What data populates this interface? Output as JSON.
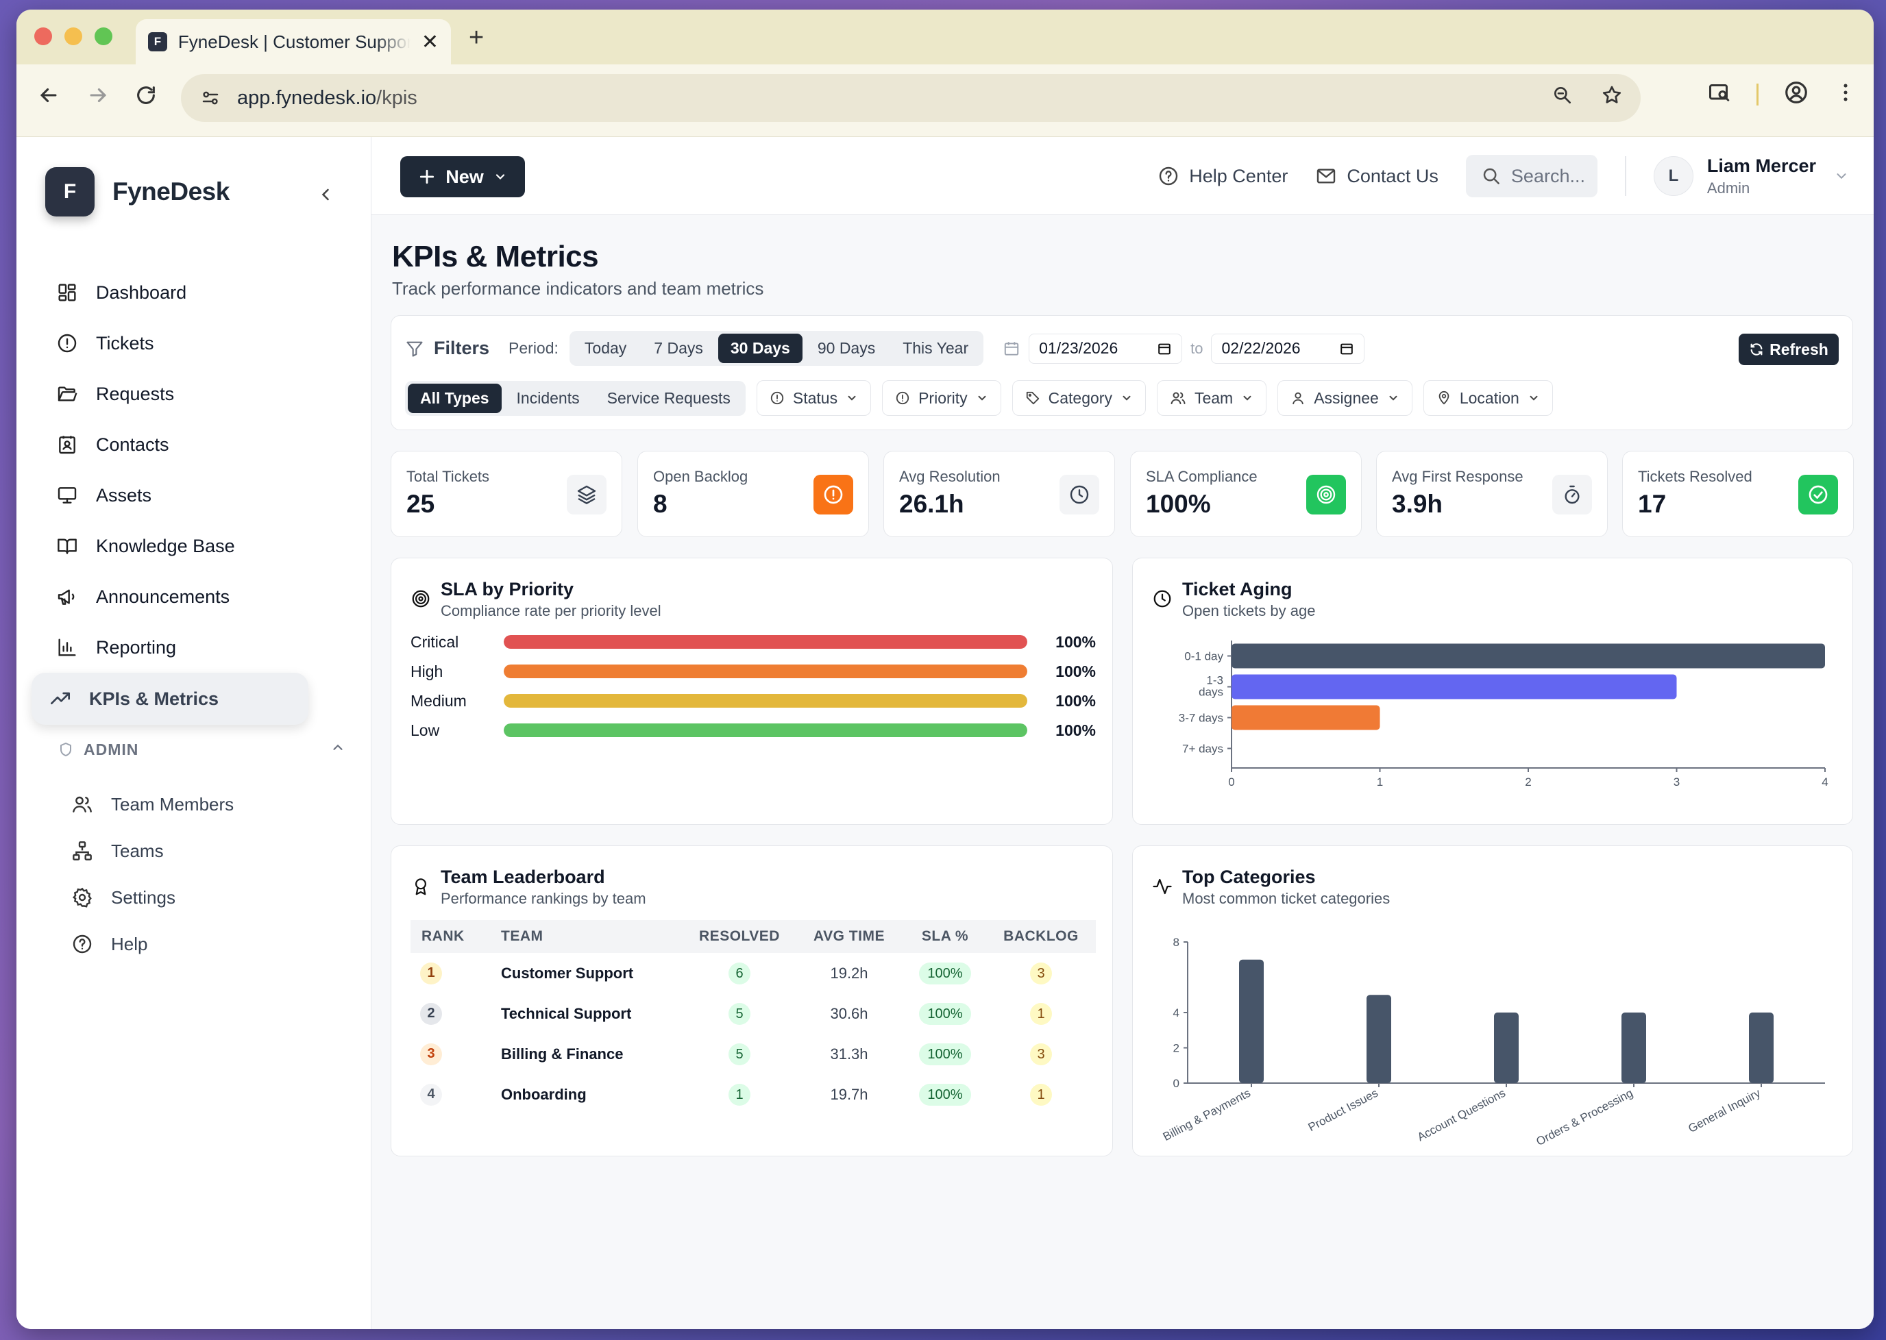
{
  "browser": {
    "tab_title": "FyneDesk | Customer Support",
    "favicon_letter": "F",
    "url_host": "app.fynedesk.io",
    "url_path": "/kpis"
  },
  "sidebar": {
    "brand_letter": "F",
    "brand_name": "FyneDesk",
    "items": [
      {
        "label": "Dashboard",
        "icon": "grid-icon"
      },
      {
        "label": "Tickets",
        "icon": "alert-circle-icon"
      },
      {
        "label": "Requests",
        "icon": "folder-icon"
      },
      {
        "label": "Contacts",
        "icon": "contact-card-icon"
      },
      {
        "label": "Assets",
        "icon": "monitor-icon"
      },
      {
        "label": "Knowledge Base",
        "icon": "book-icon"
      },
      {
        "label": "Announcements",
        "icon": "megaphone-icon"
      },
      {
        "label": "Reporting",
        "icon": "bar-chart-icon"
      },
      {
        "label": "KPIs & Metrics",
        "icon": "trending-up-icon",
        "active": true
      }
    ],
    "admin_heading": "ADMIN",
    "admin_items": [
      {
        "label": "Team Members",
        "icon": "users-icon"
      },
      {
        "label": "Teams",
        "icon": "org-chart-icon"
      },
      {
        "label": "Settings",
        "icon": "gear-icon"
      },
      {
        "label": "Help",
        "icon": "help-circle-icon"
      }
    ]
  },
  "topbar": {
    "new_label": "New",
    "help_label": "Help Center",
    "contact_label": "Contact Us",
    "search_placeholder": "Search...",
    "user_initial": "L",
    "user_name": "Liam Mercer",
    "user_role": "Admin"
  },
  "page": {
    "title": "KPIs & Metrics",
    "subtitle": "Track performance indicators and team metrics"
  },
  "filters": {
    "label": "Filters",
    "period_label": "Period:",
    "periods": [
      "Today",
      "7 Days",
      "30 Days",
      "90 Days",
      "This Year"
    ],
    "active_period": "30 Days",
    "date_from": "01/23/2026",
    "date_to_label": "to",
    "date_to": "02/22/2026",
    "refresh_label": "Refresh",
    "types": [
      "All Types",
      "Incidents",
      "Service Requests"
    ],
    "active_type": "All Types",
    "dropdowns": [
      {
        "label": "Status",
        "icon": "alert-circle-icon"
      },
      {
        "label": "Priority",
        "icon": "alert-circle-icon"
      },
      {
        "label": "Category",
        "icon": "tag-icon"
      },
      {
        "label": "Team",
        "icon": "users-icon"
      },
      {
        "label": "Assignee",
        "icon": "user-icon"
      },
      {
        "label": "Location",
        "icon": "map-pin-icon"
      }
    ]
  },
  "stats": [
    {
      "label": "Total Tickets",
      "value": "25",
      "icon": "layers-icon",
      "color": "#f3f4f6"
    },
    {
      "label": "Open Backlog",
      "value": "8",
      "icon": "alert-circle-icon",
      "color": "#f97316"
    },
    {
      "label": "Avg Resolution",
      "value": "26.1h",
      "icon": "clock-icon",
      "color": "#f3f4f6"
    },
    {
      "label": "SLA Compliance",
      "value": "100%",
      "icon": "target-icon",
      "color": "#22c55e"
    },
    {
      "label": "Avg First Response",
      "value": "3.9h",
      "icon": "timer-icon",
      "color": "#f3f4f6"
    },
    {
      "label": "Tickets Resolved",
      "value": "17",
      "icon": "check-circle-icon",
      "color": "#22c55e"
    }
  ],
  "sla": {
    "title": "SLA by Priority",
    "subtitle": "Compliance rate per priority level",
    "rows": [
      {
        "name": "Critical",
        "pct": 100,
        "label": "100%",
        "color": "#e15252"
      },
      {
        "name": "High",
        "pct": 100,
        "label": "100%",
        "color": "#ef7d32"
      },
      {
        "name": "Medium",
        "pct": 100,
        "label": "100%",
        "color": "#e3b73b"
      },
      {
        "name": "Low",
        "pct": 100,
        "label": "100%",
        "color": "#5cc463"
      }
    ]
  },
  "aging": {
    "title": "Ticket Aging",
    "subtitle": "Open tickets by age"
  },
  "leaderboard": {
    "title": "Team Leaderboard",
    "subtitle": "Performance rankings by team",
    "columns": [
      "RANK",
      "TEAM",
      "RESOLVED",
      "AVG TIME",
      "SLA %",
      "BACKLOG"
    ],
    "rows": [
      {
        "rank": "1",
        "team": "Customer Support",
        "resolved": "6",
        "avg": "19.2h",
        "sla": "100%",
        "backlog": "3"
      },
      {
        "rank": "2",
        "team": "Technical Support",
        "resolved": "5",
        "avg": "30.6h",
        "sla": "100%",
        "backlog": "1"
      },
      {
        "rank": "3",
        "team": "Billing & Finance",
        "resolved": "5",
        "avg": "31.3h",
        "sla": "100%",
        "backlog": "3"
      },
      {
        "rank": "4",
        "team": "Onboarding",
        "resolved": "1",
        "avg": "19.7h",
        "sla": "100%",
        "backlog": "1"
      }
    ]
  },
  "categories": {
    "title": "Top Categories",
    "subtitle": "Most common ticket categories"
  },
  "chart_data": [
    {
      "type": "bar",
      "orientation": "horizontal",
      "categories": [
        "0-1 day",
        "1-3 days",
        "3-7 days",
        "7+ days"
      ],
      "values": [
        4,
        3,
        1,
        0
      ],
      "colors": [
        "#475569",
        "#6366f1",
        "#f07a35",
        "#9ca3af"
      ],
      "xlim": [
        0,
        4
      ],
      "xticks": [
        0,
        1,
        2,
        3,
        4
      ]
    },
    {
      "type": "bar",
      "categories": [
        "Billing & Payments",
        "Product Issues",
        "Account Questions",
        "Orders & Processing",
        "General Inquiry"
      ],
      "values": [
        7,
        5,
        4,
        4,
        4
      ],
      "color": "#475569",
      "ylim": [
        0,
        8
      ],
      "yticks": [
        0,
        2,
        4,
        8
      ]
    }
  ]
}
